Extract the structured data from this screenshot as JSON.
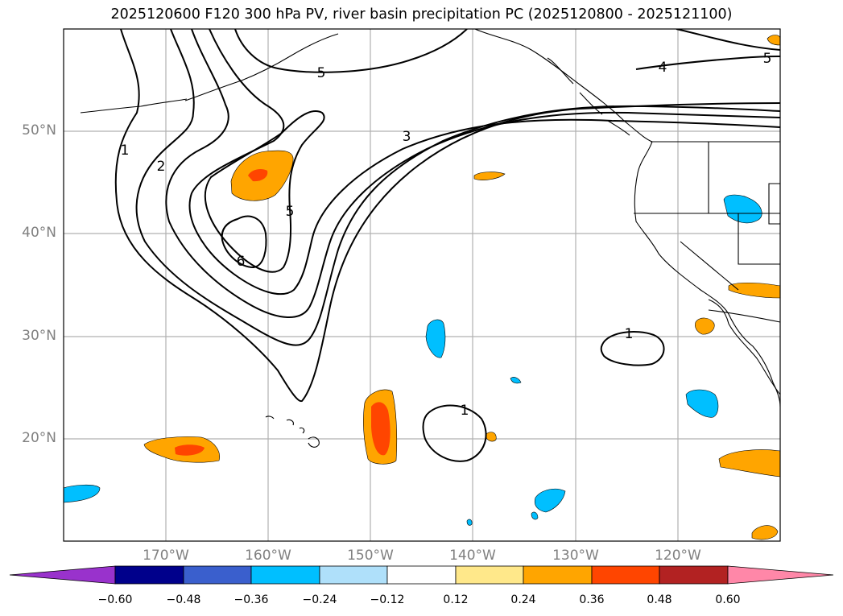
{
  "title": "2025120600 F120 300 hPa PV, river basin precipitation PC (2025120800 - 2025121100)",
  "chart_data": {
    "type": "map",
    "projection": "plate carree",
    "lon_range": [
      -180,
      -110
    ],
    "lat_range": [
      10,
      60
    ],
    "lat_ticks": [
      {
        "value": 50,
        "label": "50°N"
      },
      {
        "value": 40,
        "label": "40°N"
      },
      {
        "value": 30,
        "label": "30°N"
      },
      {
        "value": 20,
        "label": "20°N"
      }
    ],
    "lon_ticks": [
      {
        "value": -170,
        "label": "170°W"
      },
      {
        "value": -160,
        "label": "160°W"
      },
      {
        "value": -150,
        "label": "150°W"
      },
      {
        "value": -140,
        "label": "140°W"
      },
      {
        "value": -130,
        "label": "130°W"
      },
      {
        "value": -120,
        "label": "120°W"
      }
    ],
    "grid": true,
    "contour_field": "300 hPa PV",
    "contour_levels": [
      1,
      2,
      3,
      4,
      5,
      6
    ],
    "contour_labels": [
      {
        "text": "1",
        "lon": -176,
        "lat": 46.2
      },
      {
        "text": "2",
        "lon": -173.7,
        "lat": 44.5
      },
      {
        "text": "6",
        "lon": -164.2,
        "lat": 37.3
      },
      {
        "text": "5",
        "lon": -159.4,
        "lat": 42.2
      },
      {
        "text": "5",
        "lon": -157.1,
        "lat": 56.8
      },
      {
        "text": "3",
        "lon": -146.8,
        "lat": 49.6
      },
      {
        "text": "4",
        "lon": -121.5,
        "lat": 57.9
      },
      {
        "text": "5",
        "lon": -111.4,
        "lat": 58.6
      },
      {
        "text": "1",
        "lon": -125.4,
        "lat": 30.2
      },
      {
        "text": "1",
        "lon": -141.1,
        "lat": 22.9
      }
    ],
    "fill_field": "river basin precipitation PC",
    "colorbar": {
      "extend": "both",
      "ticks": [
        "−0.60",
        "−0.48",
        "−0.36",
        "−0.24",
        "−0.12",
        "0.12",
        "0.24",
        "0.36",
        "0.48",
        "0.60"
      ],
      "colors": [
        "#9932cc",
        "#00008b",
        "#3a5fcd",
        "#00bfff",
        "#afe0fa",
        "#ffffff",
        "#ffe88a",
        "#ffa500",
        "#ff4500",
        "#b22222",
        "#ff87a8"
      ]
    }
  }
}
